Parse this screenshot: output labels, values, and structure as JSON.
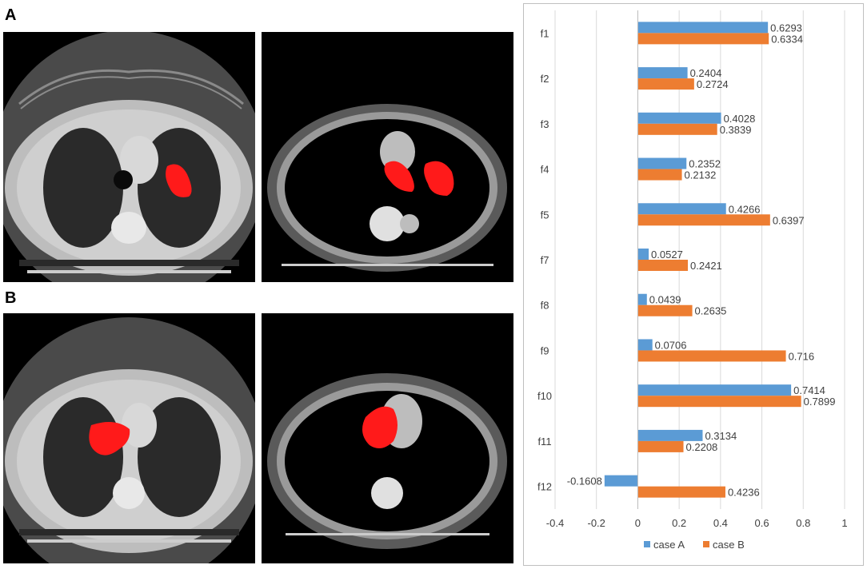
{
  "panels": {
    "a_label": "A",
    "b_label": "B"
  },
  "colors": {
    "case_a": "#5b9bd5",
    "case_b": "#ed7d31",
    "lesion": "#ff1a1a",
    "grid": "#d9d9d9",
    "axis": "#bfbfbf"
  },
  "chart_data": {
    "type": "bar",
    "orientation": "horizontal",
    "title": "",
    "xlabel": "",
    "ylabel": "",
    "xlim": [
      -0.4,
      1.0
    ],
    "x_ticks": [
      -0.4,
      -0.2,
      0,
      0.2,
      0.4,
      0.6,
      0.8,
      1
    ],
    "x_tick_labels": [
      "-0.4",
      "-0.2",
      "0",
      "0.2",
      "0.4",
      "0.6",
      "0.8",
      "1"
    ],
    "categories": [
      "f1",
      "f2",
      "f3",
      "f4",
      "f5",
      "f7",
      "f8",
      "f9",
      "f10",
      "f11",
      "f12"
    ],
    "series": [
      {
        "name": "case A",
        "values": [
          0.6293,
          0.2404,
          0.4028,
          0.2352,
          0.4266,
          0.0527,
          0.0439,
          0.0706,
          0.7414,
          0.3134,
          -0.1608
        ],
        "labels": [
          "0.6293",
          "0.2404",
          "0.4028",
          "0.2352",
          "0.4266",
          "0.0527",
          "0.0439",
          "0.0706",
          "0.7414",
          "0.3134",
          "-0.1608"
        ]
      },
      {
        "name": "case B",
        "values": [
          0.6334,
          0.2724,
          0.3839,
          0.2132,
          0.6397,
          0.2421,
          0.2635,
          0.716,
          0.7899,
          0.2208,
          0.4236
        ],
        "labels": [
          "0.6334",
          "0.2724",
          "0.3839",
          "0.2132",
          "0.6397",
          "0.2421",
          "0.2635",
          "0.716",
          "0.7899",
          "0.2208",
          "0.4236"
        ]
      }
    ],
    "grid": true,
    "legend": "bottom"
  }
}
